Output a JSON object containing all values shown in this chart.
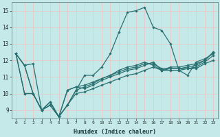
{
  "xlabel": "Humidex (Indice chaleur)",
  "ylabel": "",
  "background_color": "#c5e8e8",
  "grid_color": "#e8c8c8",
  "line_color": "#2a7070",
  "xlim": [
    -0.5,
    23.5
  ],
  "ylim": [
    8.5,
    15.5
  ],
  "yticks": [
    9,
    10,
    11,
    12,
    13,
    14,
    15
  ],
  "xticks": [
    0,
    1,
    2,
    3,
    4,
    5,
    6,
    7,
    8,
    9,
    10,
    11,
    12,
    13,
    14,
    15,
    16,
    17,
    18,
    19,
    20,
    21,
    22,
    23
  ],
  "lines": [
    [
      12.4,
      11.7,
      11.8,
      9.0,
      9.3,
      8.6,
      9.3,
      10.2,
      11.1,
      11.1,
      11.6,
      12.4,
      13.7,
      14.9,
      15.0,
      15.2,
      14.0,
      13.8,
      13.0,
      11.4,
      11.1,
      11.9,
      12.1,
      12.4
    ],
    [
      12.4,
      11.7,
      10.0,
      9.0,
      9.5,
      8.6,
      10.2,
      10.4,
      10.3,
      10.5,
      10.8,
      11.0,
      11.2,
      11.4,
      11.5,
      11.7,
      11.9,
      11.4,
      11.6,
      11.6,
      11.7,
      11.8,
      12.0,
      12.5
    ],
    [
      12.4,
      11.7,
      10.0,
      9.0,
      9.5,
      8.6,
      10.2,
      10.4,
      10.5,
      10.7,
      10.9,
      11.1,
      11.3,
      11.5,
      11.6,
      11.8,
      11.8,
      11.5,
      11.5,
      11.5,
      11.6,
      11.7,
      12.0,
      12.5
    ],
    [
      12.4,
      10.0,
      10.0,
      9.0,
      9.3,
      8.6,
      9.3,
      10.0,
      10.1,
      10.3,
      10.5,
      10.7,
      10.9,
      11.1,
      11.2,
      11.4,
      11.6,
      11.4,
      11.5,
      11.5,
      11.5,
      11.5,
      11.8,
      12.0
    ],
    [
      12.4,
      10.0,
      10.0,
      9.0,
      9.3,
      8.6,
      9.3,
      10.2,
      10.4,
      10.6,
      10.9,
      11.1,
      11.4,
      11.6,
      11.7,
      11.9,
      11.7,
      11.4,
      11.4,
      11.4,
      11.5,
      11.6,
      11.9,
      12.3
    ]
  ],
  "xlabel_fontsize": 6.0,
  "tick_fontsize": 4.5,
  "ytick_fontsize": 5.5,
  "marker_size": 1.8,
  "line_width": 0.9
}
